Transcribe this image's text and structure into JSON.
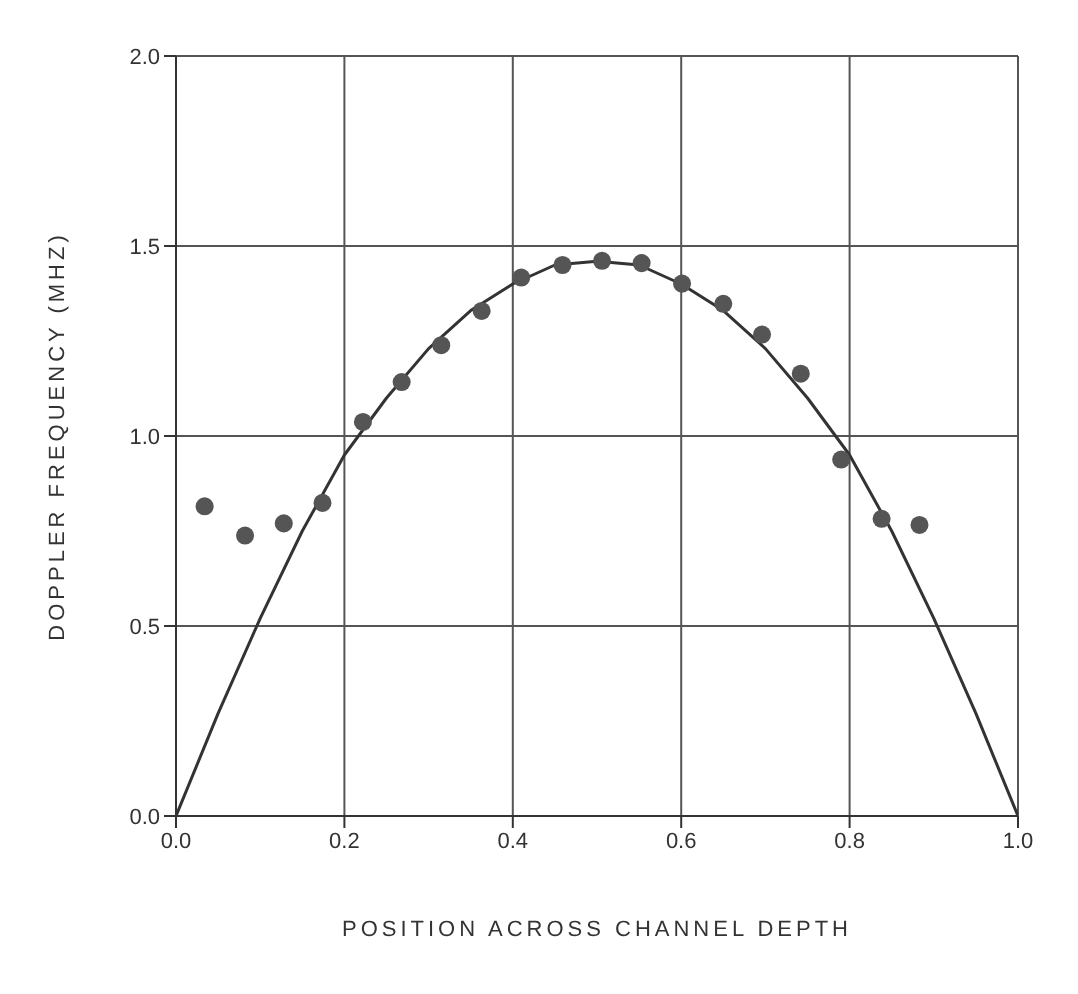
{
  "chart_data": {
    "type": "scatter",
    "xlabel": "POSITION ACROSS CHANNEL DEPTH",
    "ylabel": "DOPPLER FREQUENCY (MHZ)",
    "xlim": [
      0,
      1
    ],
    "ylim": [
      0,
      2
    ],
    "xticks": [
      {
        "value": 0,
        "label": "0.0"
      },
      {
        "value": 0.2,
        "label": "0.2"
      },
      {
        "value": 0.4,
        "label": "0.4"
      },
      {
        "value": 0.6,
        "label": "0.6"
      },
      {
        "value": 0.8,
        "label": "0.8"
      },
      {
        "value": 1,
        "label": "1.0"
      }
    ],
    "yticks": [
      {
        "value": 0,
        "label": "0.0"
      },
      {
        "value": 0.5,
        "label": "0.5"
      },
      {
        "value": 1,
        "label": "1.0"
      },
      {
        "value": 1.5,
        "label": "1.5"
      },
      {
        "value": 2,
        "label": "2.0"
      }
    ],
    "grid": true,
    "marker": "circle",
    "series": [
      {
        "color": "#555555",
        "x": [
          0.034,
          0.082,
          0.128,
          0.174,
          0.222,
          0.268,
          0.315,
          0.363,
          0.41,
          0.459,
          0.506,
          0.553,
          0.601,
          0.65,
          0.696,
          0.742,
          0.79,
          0.838,
          0.883
        ],
        "values": [
          0.815,
          0.738,
          0.77,
          0.824,
          1.037,
          1.142,
          1.239,
          1.329,
          1.417,
          1.45,
          1.461,
          1.455,
          1.401,
          1.348,
          1.267,
          1.164,
          0.938,
          0.782,
          0.766
        ]
      },
      {
        "type": "line",
        "color": "#333333",
        "marker": "none",
        "line_style": "solid",
        "x": [
          0,
          0.05,
          0.1,
          0.15,
          0.2,
          0.25,
          0.3,
          0.35,
          0.4,
          0.45,
          0.5,
          0.55,
          0.6,
          0.65,
          0.7,
          0.75,
          0.8,
          0.85,
          0.9,
          0.95,
          1
        ],
        "values": [
          0,
          0.27,
          0.52,
          0.75,
          0.95,
          1.1,
          1.23,
          1.33,
          1.4,
          1.45,
          1.46,
          1.45,
          1.4,
          1.33,
          1.23,
          1.1,
          0.95,
          0.75,
          0.52,
          0.27,
          0
        ]
      }
    ]
  }
}
